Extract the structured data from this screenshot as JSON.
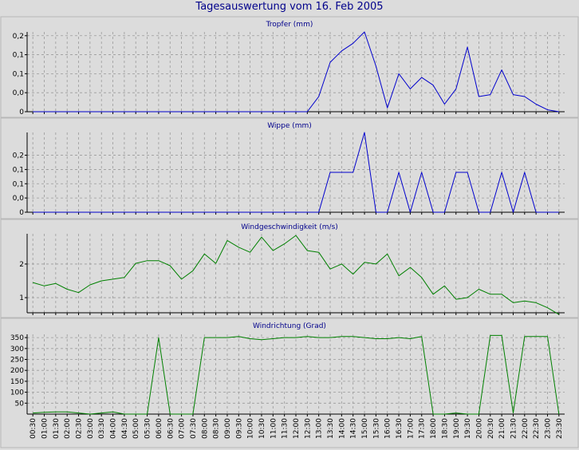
{
  "title": "Tagesauswertung vom 16. Feb 2005",
  "time_labels": [
    "00:30",
    "01:00",
    "01:30",
    "02:00",
    "02:30",
    "03:00",
    "03:30",
    "04:00",
    "04:30",
    "05:00",
    "05:30",
    "06:00",
    "06:30",
    "07:00",
    "07:30",
    "08:00",
    "08:30",
    "09:00",
    "09:30",
    "10:00",
    "10:30",
    "11:00",
    "11:30",
    "12:00",
    "12:30",
    "13:00",
    "13:30",
    "14:00",
    "14:30",
    "15:00",
    "15:30",
    "16:00",
    "16:30",
    "17:00",
    "17:30",
    "18:00",
    "18:30",
    "19:00",
    "19:30",
    "20:00",
    "20:30",
    "21:00",
    "21:30",
    "22:00",
    "22:30",
    "23:00",
    "23:30"
  ],
  "colors": {
    "blue": "#0000cd",
    "green": "#008000",
    "panel_bg": "#dcdcdc",
    "grid": "#9a9a9a",
    "title": "#00008b"
  },
  "chart_data": [
    {
      "type": "line",
      "title": "Tropfer (mm)",
      "ylim": [
        0,
        0.21
      ],
      "yticks": [
        0,
        0.05,
        0.1,
        0.15,
        0.2
      ],
      "ytick_labels": [
        "0",
        "0,0",
        "0,1",
        "0,1",
        "0,2"
      ],
      "grid": true,
      "series": [
        {
          "color": "blue",
          "values": [
            0,
            0,
            0,
            0,
            0,
            0,
            0,
            0,
            0,
            0,
            0,
            0,
            0,
            0,
            0,
            0,
            0,
            0,
            0,
            0,
            0,
            0,
            0,
            0,
            0,
            0.04,
            0.13,
            0.16,
            0.18,
            0.21,
            0.12,
            0.01,
            0.1,
            0.06,
            0.09,
            0.07,
            0.02,
            0.06,
            0.17,
            0.04,
            0.045,
            0.11,
            0.045,
            0.04,
            0.02,
            0.005,
            0
          ]
        }
      ]
    },
    {
      "type": "line",
      "title": "Wippe (mm)",
      "ylim": [
        0,
        0.28
      ],
      "yticks": [
        0,
        0.05,
        0.1,
        0.15,
        0.2
      ],
      "ytick_labels": [
        "0",
        "0,0",
        "0,1",
        "0,1",
        "0,2"
      ],
      "grid": true,
      "series": [
        {
          "color": "blue",
          "values": [
            0,
            0,
            0,
            0,
            0,
            0,
            0,
            0,
            0,
            0,
            0,
            0,
            0,
            0,
            0,
            0,
            0,
            0,
            0,
            0,
            0,
            0,
            0,
            0,
            0,
            0,
            0.14,
            0.14,
            0.14,
            0.28,
            0,
            0,
            0.14,
            0,
            0.14,
            0,
            0,
            0.14,
            0.14,
            0,
            0,
            0.14,
            0,
            0.14,
            0,
            0,
            0
          ]
        }
      ]
    },
    {
      "type": "line",
      "title": "Windgeschwindigkeit (m/s)",
      "ylim": [
        0.55,
        2.9
      ],
      "yticks": [
        1,
        2
      ],
      "ytick_labels": [
        "1",
        "2"
      ],
      "grid": true,
      "series": [
        {
          "color": "green",
          "values": [
            1.45,
            1.35,
            1.42,
            1.25,
            1.15,
            1.38,
            1.5,
            1.55,
            1.6,
            2.02,
            2.1,
            2.1,
            1.95,
            1.55,
            1.8,
            2.3,
            2.02,
            2.7,
            2.5,
            2.35,
            2.8,
            2.4,
            2.6,
            2.85,
            2.4,
            2.35,
            1.85,
            2.0,
            1.7,
            2.05,
            2.0,
            2.3,
            1.65,
            1.9,
            1.6,
            1.1,
            1.35,
            0.95,
            1.0,
            1.25,
            1.1,
            1.1,
            0.85,
            0.9,
            0.85,
            0.7,
            0.5
          ]
        }
      ]
    },
    {
      "type": "line",
      "title": "Windrichtung (Grad)",
      "ylim": [
        0,
        365
      ],
      "yticks": [
        50,
        100,
        150,
        200,
        250,
        300,
        350
      ],
      "ytick_labels": [
        "50",
        "100",
        "150",
        "200",
        "250",
        "300",
        "350"
      ],
      "grid": true,
      "series": [
        {
          "color": "green",
          "values": [
            5,
            8,
            10,
            10,
            5,
            0,
            5,
            10,
            0,
            0,
            0,
            350,
            0,
            0,
            0,
            350,
            350,
            350,
            355,
            345,
            340,
            345,
            350,
            350,
            355,
            350,
            350,
            355,
            355,
            350,
            345,
            345,
            350,
            345,
            355,
            0,
            0,
            5,
            0,
            0,
            360,
            360,
            5,
            355,
            355,
            355,
            0
          ]
        }
      ]
    }
  ]
}
